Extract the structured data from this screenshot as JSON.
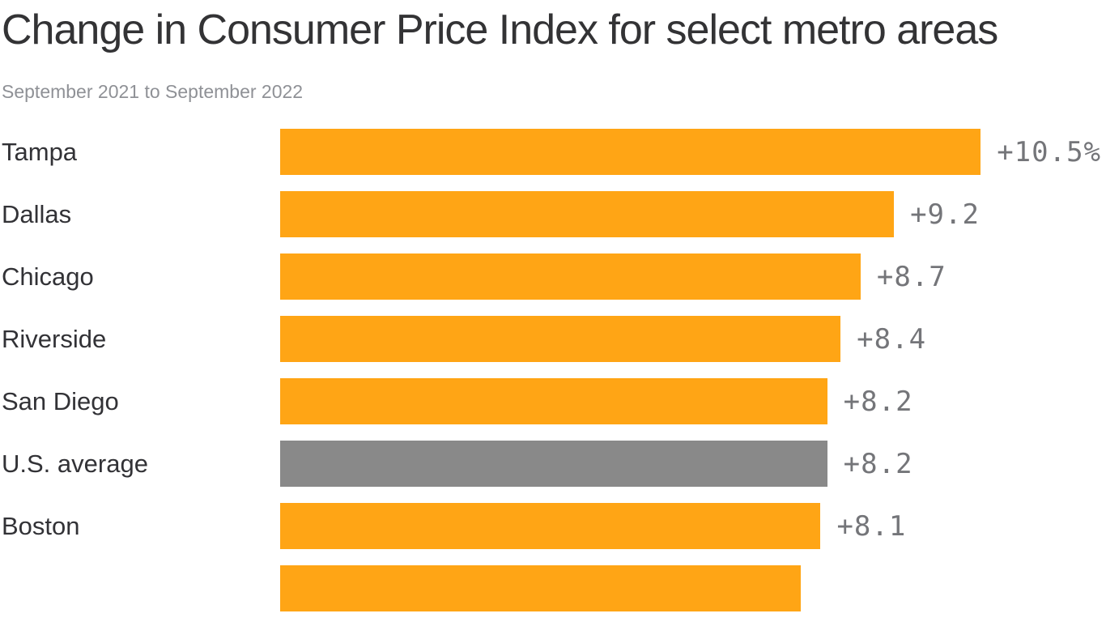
{
  "header": {
    "title": "Change in Consumer Price Index for select metro areas",
    "subtitle": "September 2021 to September 2022"
  },
  "colors": {
    "background": "#FFFFFF",
    "bar_orange": "#FFA515",
    "bar_gray": "#898989",
    "title_text": "#333335",
    "label_text": "#323236",
    "subtitle_text": "#8F9196",
    "value_text": "#747579"
  },
  "chart_data": {
    "type": "bar",
    "orientation": "horizontal",
    "title": "Change in Consumer Price Index for select metro areas",
    "subtitle": "September 2021 to September 2022",
    "unit": "percent change year over year",
    "xlim": [
      0,
      10.5
    ],
    "grid": false,
    "legend": false,
    "categories": [
      "Tampa",
      "Dallas",
      "Chicago",
      "Riverside",
      "San Diego",
      "U.S. average",
      "Boston",
      ""
    ],
    "values": [
      10.5,
      9.2,
      8.7,
      8.4,
      8.2,
      8.2,
      8.1,
      7.8
    ],
    "value_labels": [
      "+10.5%",
      "+9.2",
      "+8.7",
      "+8.4",
      "+8.2",
      "+8.2",
      "+8.1",
      ""
    ],
    "bar_colors": [
      "orange",
      "orange",
      "orange",
      "orange",
      "orange",
      "gray",
      "orange",
      "orange"
    ]
  }
}
